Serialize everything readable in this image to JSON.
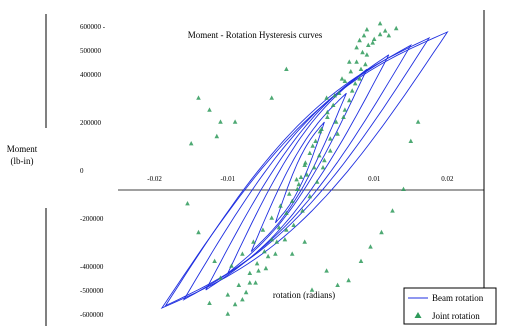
{
  "chart_data": {
    "type": "line",
    "title": "Moment - Rotation Hysteresis curves",
    "ylabel_line1": "Moment",
    "ylabel_line2": "(lb-in)",
    "xlabel": "rotation (radians)",
    "xlim": [
      -0.025,
      0.025
    ],
    "ylim": [
      -650000,
      650000
    ],
    "y_ticks": [
      {
        "value": 600000,
        "label": "600000 -"
      },
      {
        "value": 500000,
        "label": "500000"
      },
      {
        "value": 400000,
        "label": "400000"
      },
      {
        "value": 200000,
        "label": "200000"
      },
      {
        "value": 0,
        "label": "0"
      },
      {
        "value": -200000,
        "label": "-200000"
      },
      {
        "value": -400000,
        "label": "-400000"
      },
      {
        "value": -500000,
        "label": "-500000"
      },
      {
        "value": -600000,
        "label": "-600000"
      }
    ],
    "x_ticks": [
      {
        "value": -0.02,
        "label": "-0.02"
      },
      {
        "value": -0.01,
        "label": "-0.01"
      },
      {
        "value": 0.01,
        "label": "0.01"
      },
      {
        "value": 0.02,
        "label": "0.02"
      }
    ],
    "grid": false,
    "legend_position": "bottom-right",
    "series": [
      {
        "name": "Beam rotation",
        "color": "#1f2fe0",
        "marker": "line",
        "loops": [
          {
            "amp_pos": 0.0032,
            "amp_neg": -0.0035,
            "m_pos": 200000,
            "m_neg": -220000,
            "width": 60000
          },
          {
            "amp_pos": 0.0062,
            "amp_neg": -0.0068,
            "m_pos": 320000,
            "m_neg": -340000,
            "width": 90000
          },
          {
            "amp_pos": 0.009,
            "amp_neg": -0.01,
            "m_pos": 420000,
            "m_neg": -430000,
            "width": 120000
          },
          {
            "amp_pos": 0.012,
            "amp_neg": -0.013,
            "m_pos": 480000,
            "m_neg": -500000,
            "width": 150000
          },
          {
            "amp_pos": 0.015,
            "amp_neg": -0.016,
            "m_pos": 520000,
            "m_neg": -540000,
            "width": 170000
          },
          {
            "amp_pos": 0.0175,
            "amp_neg": -0.0185,
            "m_pos": 550000,
            "m_neg": -565000,
            "width": 190000
          },
          {
            "amp_pos": 0.02,
            "amp_neg": -0.019,
            "m_pos": 575000,
            "m_neg": -575000,
            "width": 200000
          }
        ]
      },
      {
        "name": "Joint rotation",
        "color": "#2e9a5a",
        "marker": "triangle",
        "points": [
          [
            -0.01,
            -520000
          ],
          [
            -0.0085,
            -480000
          ],
          [
            -0.007,
            -430000
          ],
          [
            -0.006,
            -390000
          ],
          [
            -0.005,
            -340000
          ],
          [
            -0.004,
            -290000
          ],
          [
            -0.003,
            -240000
          ],
          [
            -0.002,
            -180000
          ],
          [
            -0.0012,
            -130000
          ],
          [
            -0.0005,
            -80000
          ],
          [
            0.0,
            -30000
          ],
          [
            0.0005,
            20000
          ],
          [
            0.0012,
            70000
          ],
          [
            0.002,
            120000
          ],
          [
            0.0028,
            170000
          ],
          [
            0.0036,
            220000
          ],
          [
            0.0044,
            270000
          ],
          [
            0.0052,
            320000
          ],
          [
            0.006,
            370000
          ],
          [
            0.0068,
            410000
          ],
          [
            0.0076,
            450000
          ],
          [
            0.0084,
            490000
          ],
          [
            0.0092,
            520000
          ],
          [
            0.01,
            545000
          ],
          [
            0.0108,
            565000
          ],
          [
            0.0115,
            580000
          ],
          [
            -0.009,
            -560000
          ],
          [
            -0.0075,
            -510000
          ],
          [
            -0.0062,
            -470000
          ],
          [
            -0.0048,
            -410000
          ],
          [
            -0.0035,
            -350000
          ],
          [
            -0.0022,
            -290000
          ],
          [
            -0.001,
            -230000
          ],
          [
            0.0002,
            -170000
          ],
          [
            0.0012,
            -110000
          ],
          [
            0.0022,
            -50000
          ],
          [
            0.003,
            10000
          ],
          [
            0.004,
            80000
          ],
          [
            0.005,
            150000
          ],
          [
            0.0058,
            220000
          ],
          [
            0.0066,
            290000
          ],
          [
            0.0074,
            360000
          ],
          [
            0.0082,
            420000
          ],
          [
            0.009,
            480000
          ],
          [
            0.0098,
            530000
          ],
          [
            -0.011,
            -450000
          ],
          [
            -0.0095,
            -400000
          ],
          [
            -0.008,
            -350000
          ],
          [
            -0.0065,
            -300000
          ],
          [
            -0.0052,
            -250000
          ],
          [
            -0.004,
            -200000
          ],
          [
            -0.0028,
            -150000
          ],
          [
            -0.0016,
            -100000
          ],
          [
            -0.0006,
            -40000
          ],
          [
            0.0006,
            30000
          ],
          [
            0.0016,
            100000
          ],
          [
            0.0026,
            160000
          ],
          [
            0.0036,
            240000
          ],
          [
            0.0046,
            310000
          ],
          [
            0.0056,
            380000
          ],
          [
            0.0066,
            450000
          ],
          [
            0.0076,
            510000
          ],
          [
            0.0086,
            560000
          ],
          [
            0.0108,
            610000
          ],
          [
            0.0025,
            60000
          ],
          [
            0.0032,
            40000
          ],
          [
            0.0018,
            10000
          ],
          [
            0.0008,
            -20000
          ],
          [
            -0.0003,
            -60000
          ],
          [
            0.004,
            130000
          ],
          [
            0.0048,
            200000
          ],
          [
            0.0035,
            300000
          ],
          [
            0.006,
            250000
          ],
          [
            0.007,
            330000
          ],
          [
            0.008,
            380000
          ],
          [
            0.0088,
            440000
          ],
          [
            -0.002,
            -250000
          ],
          [
            -0.0033,
            -300000
          ],
          [
            -0.0045,
            -360000
          ],
          [
            -0.0058,
            -420000
          ],
          [
            -0.0012,
            -350000
          ],
          [
            0.0005,
            -300000
          ],
          [
            -0.007,
            -470000
          ],
          [
            -0.008,
            -540000
          ],
          [
            -0.014,
            300000
          ],
          [
            -0.0125,
            250000
          ],
          [
            -0.011,
            200000
          ],
          [
            -0.015,
            110000
          ],
          [
            -0.0155,
            -140000
          ],
          [
            -0.014,
            -260000
          ],
          [
            -0.0118,
            -380000
          ],
          [
            0.016,
            200000
          ],
          [
            0.015,
            120000
          ],
          [
            0.014,
            -80000
          ],
          [
            0.0125,
            -170000
          ],
          [
            0.011,
            -260000
          ],
          [
            0.0095,
            -320000
          ],
          [
            0.0082,
            -380000
          ],
          [
            0.012,
            560000
          ],
          [
            0.013,
            590000
          ],
          [
            0.009,
            585000
          ],
          [
            0.008,
            540000
          ],
          [
            -0.01,
            -600000
          ],
          [
            -0.0125,
            -555000
          ],
          [
            -0.002,
            420000
          ],
          [
            -0.004,
            300000
          ],
          [
            -0.009,
            200000
          ],
          [
            -0.0115,
            140000
          ],
          [
            0.0035,
            -420000
          ],
          [
            0.005,
            -480000
          ],
          [
            0.0065,
            -460000
          ],
          [
            0.0015,
            -500000
          ]
        ]
      }
    ]
  }
}
